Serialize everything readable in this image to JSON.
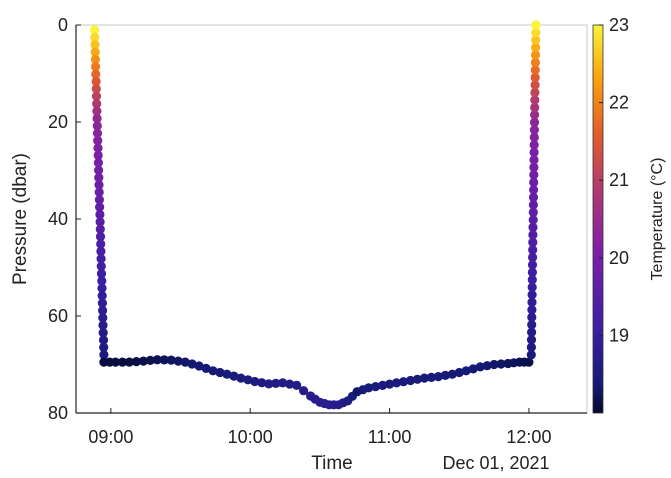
{
  "chart_data": {
    "type": "scatter",
    "xlabel": "Time",
    "date_label": "Dec 01, 2021",
    "ylabel": "Pressure (dbar)",
    "colorbar_label": "Temperature (°C)",
    "xlim": [
      "08:45",
      "12:25"
    ],
    "ylim": [
      0,
      80
    ],
    "y_reversed": true,
    "x_ticks": [
      "09:00",
      "10:00",
      "11:00",
      "12:00"
    ],
    "y_ticks": [
      0,
      20,
      40,
      60,
      80
    ],
    "clim": [
      18,
      23
    ],
    "colorbar_ticks": [
      19,
      20,
      21,
      22,
      23
    ],
    "colormap": "thermal",
    "grid": false,
    "descent": {
      "time_start": "08:53",
      "time_end": "08:57",
      "pressure_start": 1,
      "pressure_end": 68,
      "temp_start": 23,
      "temp_mid": 20.3,
      "temp_mid_pressure": 20,
      "temp_end": 18.5
    },
    "ascent": {
      "time_start": "12:01",
      "time_end": "12:03",
      "pressure_start": 68,
      "pressure_end": 0,
      "temp_start": 18.5,
      "temp_mid": 20.3,
      "temp_mid_pressure": 20,
      "temp_end": 23
    },
    "bottom_track": [
      {
        "time": "08:57",
        "pressure": 69.5,
        "temp": 18.1
      },
      {
        "time": "09:02",
        "pressure": 69.5,
        "temp": 18.1
      },
      {
        "time": "09:08",
        "pressure": 69.5,
        "temp": 18.1
      },
      {
        "time": "09:14",
        "pressure": 69.3,
        "temp": 18.15
      },
      {
        "time": "09:20",
        "pressure": 69.0,
        "temp": 18.2
      },
      {
        "time": "09:26",
        "pressure": 69.1,
        "temp": 18.25
      },
      {
        "time": "09:32",
        "pressure": 69.5,
        "temp": 18.3
      },
      {
        "time": "09:38",
        "pressure": 70.3,
        "temp": 18.35
      },
      {
        "time": "09:44",
        "pressure": 71.3,
        "temp": 18.4
      },
      {
        "time": "09:50",
        "pressure": 72.0,
        "temp": 18.45
      },
      {
        "time": "09:56",
        "pressure": 72.8,
        "temp": 18.5
      },
      {
        "time": "10:02",
        "pressure": 73.5,
        "temp": 18.55
      },
      {
        "time": "10:08",
        "pressure": 74.0,
        "temp": 18.6
      },
      {
        "time": "10:14",
        "pressure": 73.8,
        "temp": 18.6
      },
      {
        "time": "10:20",
        "pressure": 74.3,
        "temp": 18.65
      },
      {
        "time": "10:26",
        "pressure": 76.5,
        "temp": 18.7
      },
      {
        "time": "10:30",
        "pressure": 77.8,
        "temp": 18.75
      },
      {
        "time": "10:34",
        "pressure": 78.3,
        "temp": 18.75
      },
      {
        "time": "10:38",
        "pressure": 78.3,
        "temp": 18.7
      },
      {
        "time": "10:42",
        "pressure": 77.5,
        "temp": 18.6
      },
      {
        "time": "10:46",
        "pressure": 75.6,
        "temp": 18.3
      },
      {
        "time": "10:51",
        "pressure": 74.8,
        "temp": 18.45
      },
      {
        "time": "10:57",
        "pressure": 74.3,
        "temp": 18.5
      },
      {
        "time": "11:03",
        "pressure": 73.8,
        "temp": 18.5
      },
      {
        "time": "11:09",
        "pressure": 73.3,
        "temp": 18.5
      },
      {
        "time": "11:15",
        "pressure": 72.8,
        "temp": 18.45
      },
      {
        "time": "11:21",
        "pressure": 72.5,
        "temp": 18.45
      },
      {
        "time": "11:27",
        "pressure": 72.0,
        "temp": 18.4
      },
      {
        "time": "11:33",
        "pressure": 71.3,
        "temp": 18.4
      },
      {
        "time": "11:39",
        "pressure": 70.5,
        "temp": 18.35
      },
      {
        "time": "11:45",
        "pressure": 70.0,
        "temp": 18.3
      },
      {
        "time": "11:51",
        "pressure": 69.8,
        "temp": 18.25
      },
      {
        "time": "11:56",
        "pressure": 69.5,
        "temp": 18.2
      },
      {
        "time": "12:00",
        "pressure": 69.5,
        "temp": 18.15
      }
    ]
  }
}
